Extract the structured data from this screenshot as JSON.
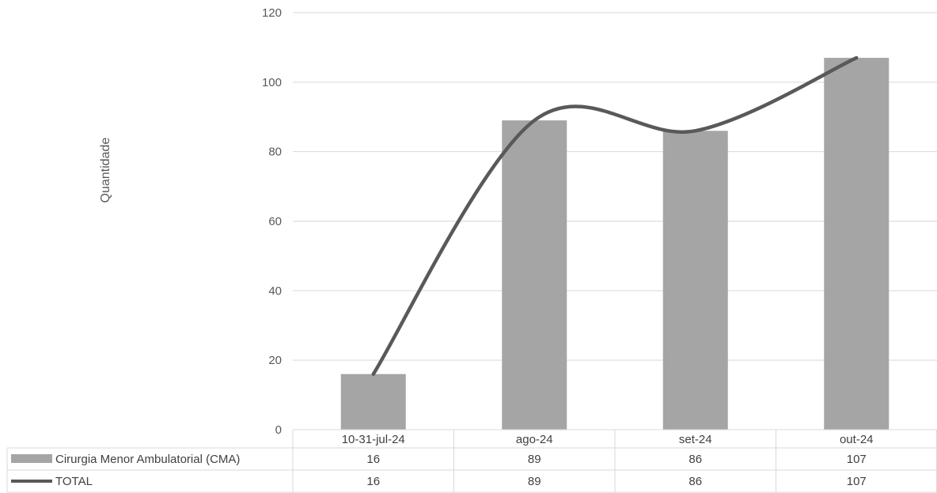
{
  "chart_data": {
    "type": "bar",
    "title": "",
    "xlabel": "",
    "ylabel": "Quantidade",
    "categories": [
      "10-31-jul-24",
      "ago-24",
      "set-24",
      "out-24"
    ],
    "ylim": [
      0,
      120
    ],
    "yticks": [
      0,
      20,
      40,
      60,
      80,
      100,
      120
    ],
    "grid": true,
    "legend": "data-table-below",
    "series": [
      {
        "name": "Cirurgia Menor Ambulatorial (CMA)",
        "type": "bar",
        "color": "#a5a5a5",
        "values": [
          16,
          89,
          86,
          107
        ]
      },
      {
        "name": "TOTAL",
        "type": "line",
        "smooth": true,
        "color": "#595959",
        "values": [
          16,
          89,
          86,
          107
        ]
      }
    ],
    "table": {
      "rows": [
        {
          "label": "Cirurgia Menor Ambulatorial (CMA)",
          "values": [
            "16",
            "89",
            "86",
            "107"
          ]
        },
        {
          "label": "TOTAL",
          "values": [
            "16",
            "89",
            "86",
            "107"
          ]
        }
      ]
    }
  }
}
